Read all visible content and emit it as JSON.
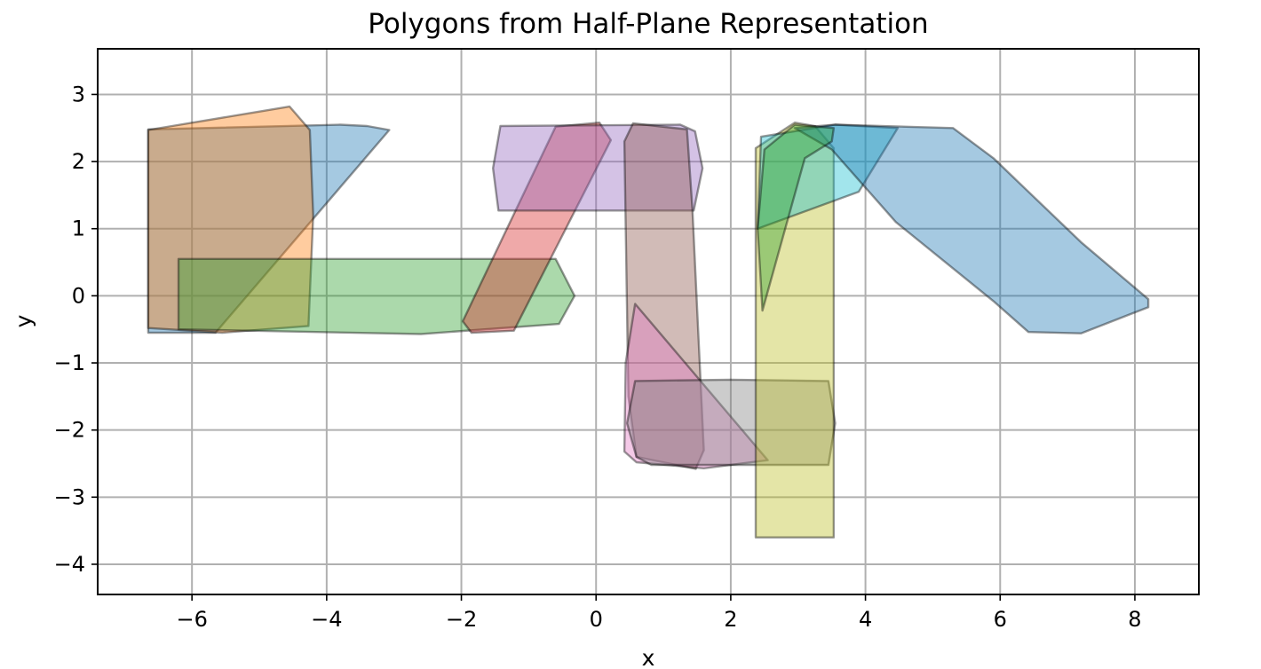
{
  "chart_data": {
    "type": "area",
    "title": "Polygons from Half-Plane Representation",
    "xlabel": "x",
    "ylabel": "y",
    "xlim": [
      -7.4,
      8.95
    ],
    "ylim": [
      -4.45,
      3.68
    ],
    "xticks": [
      -6,
      -4,
      -2,
      0,
      2,
      4,
      6,
      8
    ],
    "yticks": [
      -4,
      -3,
      -2,
      -1,
      0,
      1,
      2,
      3
    ],
    "xtick_labels": [
      "−6",
      "−4",
      "−2",
      "0",
      "2",
      "4",
      "6",
      "8"
    ],
    "ytick_labels": [
      "−4",
      "−3",
      "−2",
      "−1",
      "0",
      "1",
      "2",
      "3"
    ],
    "grid": true,
    "polygons": [
      {
        "color": "#1f77b4",
        "points": [
          [
            -6.65,
            -0.55
          ],
          [
            -6.65,
            2.48
          ],
          [
            -3.8,
            2.55
          ],
          [
            -3.4,
            2.53
          ],
          [
            -3.07,
            2.47
          ],
          [
            -5.65,
            -0.55
          ]
        ]
      },
      {
        "color": "#ff7f0e",
        "points": [
          [
            -6.65,
            -0.48
          ],
          [
            -6.65,
            2.47
          ],
          [
            -4.55,
            2.82
          ],
          [
            -4.25,
            2.47
          ],
          [
            -4.2,
            1.2
          ],
          [
            -4.27,
            -0.45
          ],
          [
            -5.55,
            -0.55
          ]
        ]
      },
      {
        "color": "#2ca02c",
        "points": [
          [
            -6.2,
            -0.5
          ],
          [
            -6.2,
            0.55
          ],
          [
            -0.6,
            0.55
          ],
          [
            -0.32,
            0.0
          ],
          [
            -0.55,
            -0.42
          ],
          [
            -2.6,
            -0.57
          ]
        ]
      },
      {
        "color": "#d62728",
        "points": [
          [
            -1.98,
            -0.38
          ],
          [
            -0.6,
            2.52
          ],
          [
            0.05,
            2.58
          ],
          [
            0.22,
            2.32
          ],
          [
            -1.22,
            -0.52
          ],
          [
            -1.85,
            -0.55
          ]
        ]
      },
      {
        "color": "#9467bd",
        "points": [
          [
            -1.45,
            1.27
          ],
          [
            -1.53,
            1.9
          ],
          [
            -1.42,
            2.53
          ],
          [
            1.25,
            2.55
          ],
          [
            1.47,
            2.45
          ],
          [
            1.58,
            1.9
          ],
          [
            1.45,
            1.27
          ]
        ]
      },
      {
        "color": "#8c564b",
        "points": [
          [
            0.42,
            2.3
          ],
          [
            0.55,
            2.57
          ],
          [
            1.35,
            2.48
          ],
          [
            1.43,
            1.3
          ],
          [
            1.6,
            -2.3
          ],
          [
            1.48,
            -2.58
          ],
          [
            0.6,
            -2.4
          ],
          [
            0.48,
            -1.5
          ]
        ]
      },
      {
        "color": "#e377c2",
        "points": [
          [
            0.58,
            -0.12
          ],
          [
            0.44,
            -1.0
          ],
          [
            0.42,
            -2.32
          ],
          [
            0.6,
            -2.48
          ],
          [
            1.6,
            -2.57
          ],
          [
            2.55,
            -2.45
          ]
        ]
      },
      {
        "color": "#7f7f7f",
        "points": [
          [
            0.58,
            -1.27
          ],
          [
            2.0,
            -1.25
          ],
          [
            3.45,
            -1.27
          ],
          [
            3.55,
            -1.9
          ],
          [
            3.45,
            -2.52
          ],
          [
            0.82,
            -2.52
          ],
          [
            0.6,
            -2.4
          ],
          [
            0.46,
            -1.9
          ]
        ]
      },
      {
        "color": "#bcbd22",
        "points": [
          [
            2.37,
            -3.6
          ],
          [
            2.37,
            2.2
          ],
          [
            2.95,
            2.58
          ],
          [
            3.25,
            2.53
          ],
          [
            3.53,
            2.2
          ],
          [
            3.53,
            -3.6
          ]
        ]
      },
      {
        "color": "#17becf",
        "points": [
          [
            2.4,
            1.0
          ],
          [
            2.45,
            2.37
          ],
          [
            3.55,
            2.55
          ],
          [
            4.48,
            2.5
          ],
          [
            3.9,
            1.55
          ]
        ]
      },
      {
        "color": "#1f77b4",
        "points": [
          [
            2.95,
            2.5
          ],
          [
            3.55,
            2.55
          ],
          [
            5.3,
            2.5
          ],
          [
            5.9,
            2.05
          ],
          [
            7.2,
            0.8
          ],
          [
            8.2,
            -0.05
          ],
          [
            8.2,
            -0.17
          ],
          [
            7.2,
            -0.56
          ],
          [
            6.42,
            -0.54
          ],
          [
            5.9,
            -0.08
          ],
          [
            4.45,
            1.1
          ],
          [
            3.5,
            2.18
          ]
        ]
      },
      {
        "color": "#2ca02c",
        "points": [
          [
            2.4,
            1.0
          ],
          [
            2.5,
            2.18
          ],
          [
            2.95,
            2.55
          ],
          [
            3.53,
            2.5
          ],
          [
            3.5,
            2.3
          ],
          [
            3.1,
            2.05
          ],
          [
            2.47,
            -0.22
          ]
        ]
      }
    ]
  }
}
